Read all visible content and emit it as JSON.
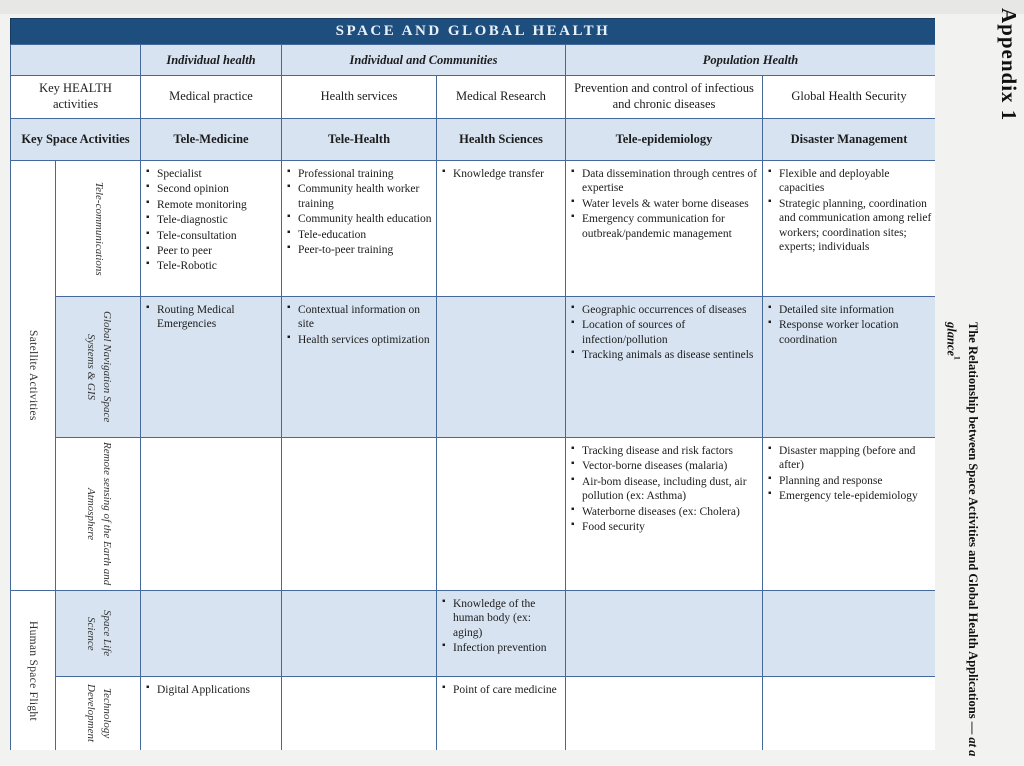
{
  "side": {
    "appendix": "Appendix 1",
    "title_main": "The Relationship between Space Activities and Global Health Applications — ",
    "title_italic_a": "at a",
    "title_italic_b": "glance",
    "title_sup": "1"
  },
  "colors": {
    "header_blue": "#1d4e7e",
    "light_blue": "#d7e3f1",
    "border_blue": "#44699a"
  },
  "table": {
    "title": "SPACE AND GLOBAL HEALTH",
    "col_groups": {
      "individual": "Individual health",
      "individual_communities": "Individual and Communities",
      "population": "Population Health"
    },
    "health_row": {
      "label": "Key HEALTH activities",
      "medical_practice": "Medical practice",
      "health_services": "Health services",
      "medical_research": "Medical Research",
      "prevention": "Prevention and control of infectious and chronic diseases",
      "security": "Global Health Security"
    },
    "space_row": {
      "label": "Key Space Activities",
      "tele_medicine": "Tele-Medicine",
      "tele_health": "Tele-Health",
      "health_sciences": "Health Sciences",
      "tele_epidemiology": "Tele-epidemiology",
      "disaster_management": "Disaster Management"
    },
    "row_groups": {
      "satellite": "Satellite Activities",
      "human": "Human Space Flight"
    },
    "rows": [
      {
        "label": "Tele-communications",
        "cells": {
          "tele_medicine": [
            "Specialist",
            "Second opinion",
            "Remote monitoring",
            "Tele-diagnostic",
            "Tele-consultation",
            "Peer to peer",
            "Tele-Robotic"
          ],
          "tele_health": [
            "Professional training",
            "Community health worker training",
            "Community health education",
            "Tele-education",
            "Peer-to-peer training"
          ],
          "health_sciences": [
            "Knowledge transfer"
          ],
          "tele_epidemiology": [
            "Data dissemination through centres of expertise",
            "Water levels & water borne diseases",
            "Emergency communication for outbreak/pandemic management"
          ],
          "disaster_management": [
            "Flexible and deployable capacities",
            "Strategic planning, coordination and communication among relief workers; coordination sites; experts; individuals"
          ]
        }
      },
      {
        "label": "Global Navigation Space Systems & GIS",
        "cells": {
          "tele_medicine": [
            "Routing Medical Emergencies"
          ],
          "tele_health": [
            "Contextual information on site",
            "Health services optimization"
          ],
          "health_sciences": [],
          "tele_epidemiology": [
            "Geographic occurrences of diseases",
            "Location of sources of infection/pollution",
            "Tracking animals as disease sentinels"
          ],
          "disaster_management": [
            "Detailed site information",
            "Response worker location coordination"
          ]
        }
      },
      {
        "label": "Remote sensing of the Earth and Atmosphere",
        "cells": {
          "tele_medicine": [],
          "tele_health": [],
          "health_sciences": [],
          "tele_epidemiology": [
            "Tracking disease and risk factors",
            "Vector-borne diseases (malaria)",
            "Air-bom disease, including dust, air pollution (ex: Asthma)",
            "Waterborne diseases (ex: Cholera)",
            "Food security"
          ],
          "disaster_management": [
            "Disaster mapping (before and after)",
            "Planning and response",
            "Emergency tele-epidemiology"
          ]
        }
      },
      {
        "label": "Space Life Science",
        "cells": {
          "tele_medicine": [],
          "tele_health": [],
          "health_sciences": [
            "Knowledge of the human body (ex: aging)",
            "Infection prevention"
          ],
          "tele_epidemiology": [],
          "disaster_management": []
        }
      },
      {
        "label": "Technology Development",
        "cells": {
          "tele_medicine": [
            "Digital Applications"
          ],
          "tele_health": [],
          "health_sciences": [
            "Point of care medicine"
          ],
          "tele_epidemiology": [],
          "disaster_management": []
        }
      }
    ]
  }
}
